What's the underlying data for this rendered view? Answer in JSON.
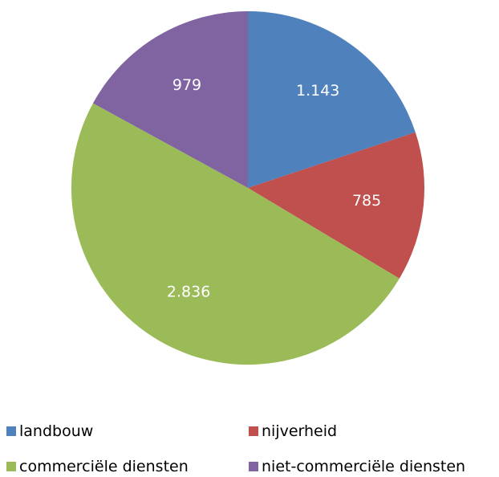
{
  "chart_data": {
    "type": "pie",
    "title": "",
    "labels": [
      "landbouw",
      "nijverheid",
      "commerciële diensten",
      "niet-commerciële diensten"
    ],
    "values": [
      1143,
      785,
      2836,
      979
    ],
    "value_labels": [
      "1.143",
      "785",
      "2.836",
      "979"
    ],
    "colors": [
      "#4f81bd",
      "#c0504d",
      "#9bbb59",
      "#8064a2"
    ],
    "start_angle_deg": 0,
    "direction": "clockwise",
    "legend_position": "bottom"
  }
}
